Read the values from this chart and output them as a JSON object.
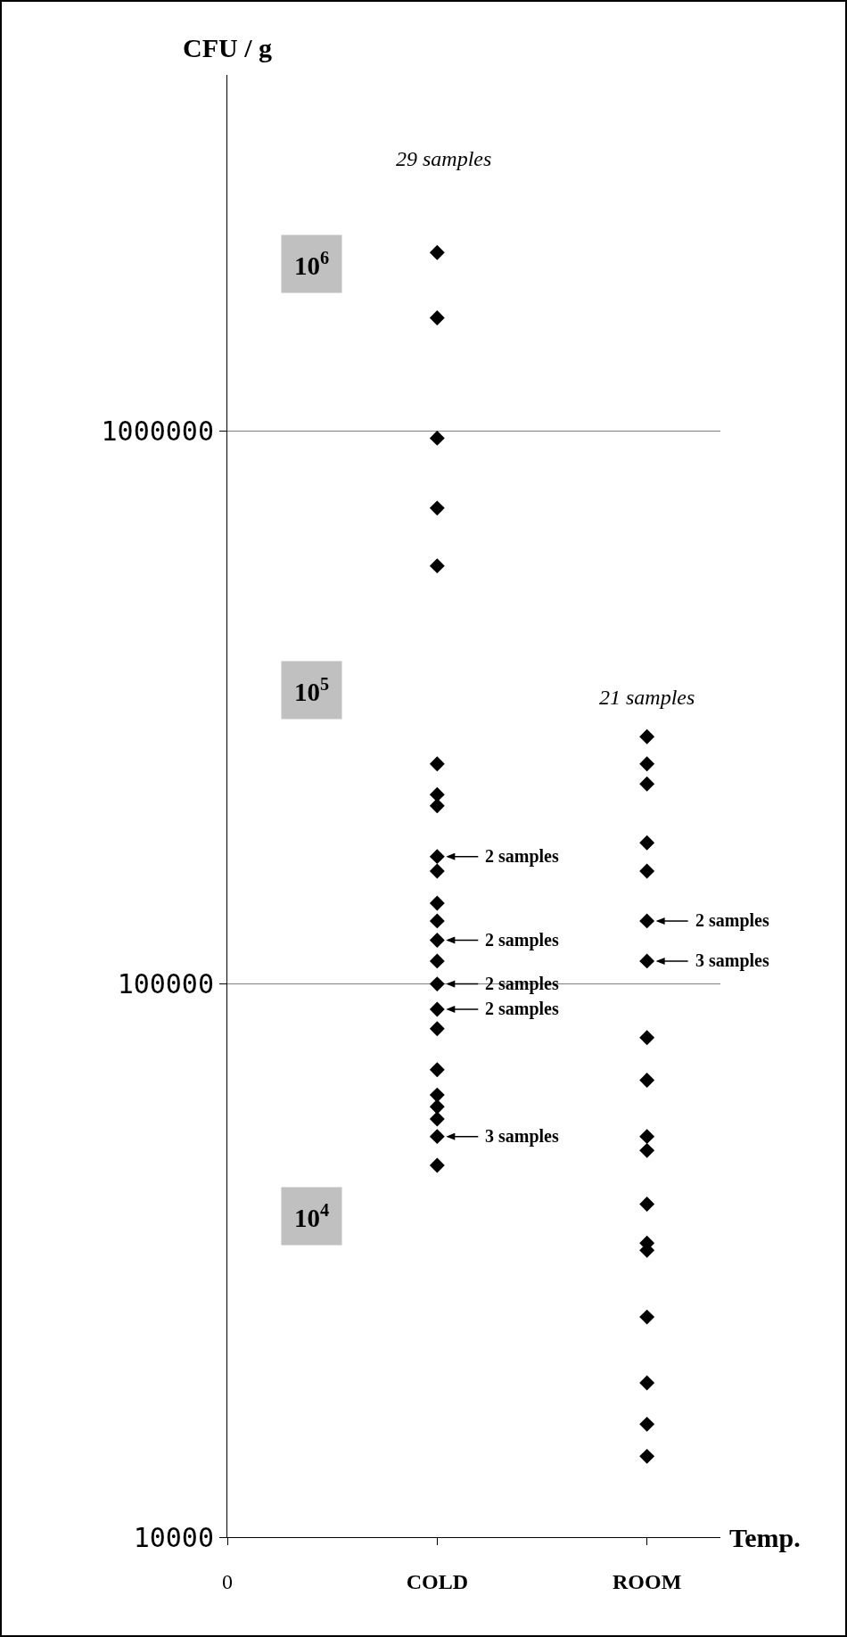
{
  "chart_data": {
    "type": "scatter",
    "ylabel": "CFU / g",
    "xlabel": "Temp.",
    "categories": [
      "0",
      "COLD",
      "ROOM"
    ],
    "series": [
      {
        "color": "#000000",
        "x": [
          "COLD",
          "COLD",
          "COLD",
          "COLD",
          "COLD",
          "COLD",
          "COLD",
          "COLD",
          "COLD",
          "COLD",
          "COLD",
          "COLD",
          "COLD",
          "COLD",
          "COLD",
          "COLD",
          "COLD",
          "COLD",
          "COLD",
          "COLD",
          "COLD",
          "COLD",
          "COLD"
        ],
        "values": [
          2100000,
          1600000,
          970000,
          725000,
          570000,
          250000,
          220000,
          210000,
          170000,
          160000,
          140000,
          130000,
          120000,
          110000,
          100000,
          90000,
          83000,
          70000,
          63000,
          60000,
          57000,
          53000,
          47000
        ]
      },
      {
        "color": "#000000",
        "x": [
          "ROOM",
          "ROOM",
          "ROOM",
          "ROOM",
          "ROOM",
          "ROOM",
          "ROOM",
          "ROOM",
          "ROOM",
          "ROOM",
          "ROOM",
          "ROOM",
          "ROOM",
          "ROOM",
          "ROOM",
          "ROOM",
          "ROOM",
          "ROOM"
        ],
        "values": [
          280000,
          250000,
          230000,
          180000,
          160000,
          130000,
          110000,
          80000,
          67000,
          53000,
          50000,
          40000,
          34000,
          33000,
          25000,
          19000,
          16000,
          14000
        ]
      }
    ],
    "log": "y",
    "ylim": [
      10000,
      4400000
    ],
    "yticks": [
      10000,
      100000,
      1000000
    ],
    "grid": "y",
    "marker": "diamond",
    "annotations": [
      "29 samples",
      "21 samples",
      "10$^{6}$",
      "10$^{5}$",
      "10$^{4}$",
      {
        "text": "2 samples",
        "x": "COLD",
        "y": 170000
      },
      {
        "text": "2 samples",
        "x": "COLD",
        "y": 120000
      },
      {
        "text": "2 samples",
        "x": "COLD",
        "y": 100000
      },
      {
        "text": "2 samples",
        "x": "COLD",
        "y": 90000
      },
      {
        "text": "3 samples",
        "x": "COLD",
        "y": 53000
      },
      {
        "text": "2 samples",
        "x": "ROOM",
        "y": 130000
      },
      {
        "text": "3 samples",
        "x": "ROOM",
        "y": 110000
      }
    ]
  }
}
